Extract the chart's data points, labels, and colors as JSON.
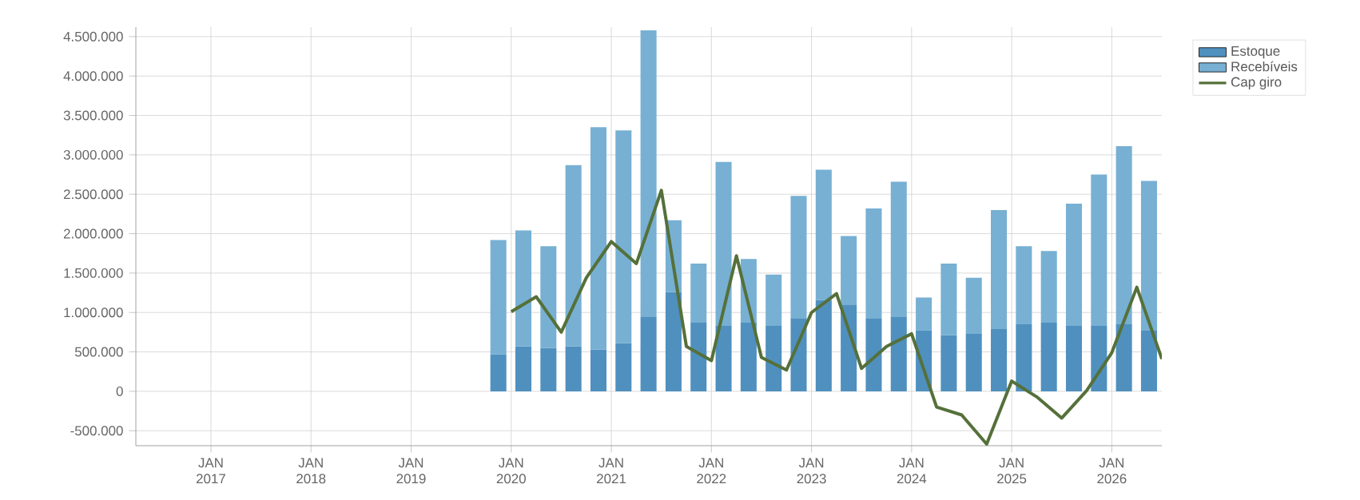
{
  "chart_data": {
    "type": "bar",
    "stacked": true,
    "grid": true,
    "legend": "right",
    "xlim": [
      "2016-04",
      "2026-07"
    ],
    "ylim": [
      -690000,
      4620000
    ],
    "xticks": [
      {
        "value": "2017-01",
        "label": "JAN 2017"
      },
      {
        "value": "2018-01",
        "label": "JAN 2018"
      },
      {
        "value": "2019-01",
        "label": "JAN 2019"
      },
      {
        "value": "2020-01",
        "label": "JAN 2020"
      },
      {
        "value": "2021-01",
        "label": "JAN 2021"
      },
      {
        "value": "2022-01",
        "label": "JAN 2022"
      },
      {
        "value": "2023-01",
        "label": "JAN 2023"
      },
      {
        "value": "2024-01",
        "label": "JAN 2024"
      },
      {
        "value": "2025-01",
        "label": "JAN 2025"
      },
      {
        "value": "2026-01",
        "label": "JAN 2026"
      }
    ],
    "yticks": [
      {
        "value": -500000,
        "label": "-500.000"
      },
      0,
      {
        "value": 500000,
        "label": "500.000"
      },
      {
        "value": 1000000,
        "label": "1.000.000"
      },
      {
        "value": 1500000,
        "label": "1.500.000"
      },
      {
        "value": 2000000,
        "label": "2.000.000"
      },
      {
        "value": 2500000,
        "label": "2.500.000"
      },
      {
        "value": 3000000,
        "label": "3.000.000"
      },
      {
        "value": 3500000,
        "label": "3.500.000"
      },
      {
        "value": 4000000,
        "label": "4.000.000"
      },
      {
        "value": 4500000,
        "label": "4.500.000"
      }
    ],
    "series": [
      {
        "name": "Estoque",
        "color": "#4f90bf",
        "x": [
          "2019-11-15",
          "2020-02-15",
          "2020-05-15",
          "2020-08-15",
          "2020-11-15",
          "2021-02-15",
          "2021-05-15",
          "2021-08-15",
          "2021-11-15",
          "2022-02-15",
          "2022-05-15",
          "2022-08-15",
          "2022-11-15",
          "2023-02-15",
          "2023-05-15",
          "2023-08-15",
          "2023-11-15",
          "2024-02-15",
          "2024-05-15",
          "2024-08-15",
          "2024-11-15",
          "2025-02-15",
          "2025-05-15",
          "2025-08-15",
          "2025-11-15",
          "2026-02-15",
          "2026-05-15"
        ],
        "values": [
          470000,
          570000,
          550000,
          570000,
          530000,
          610000,
          950000,
          1260000,
          870000,
          830000,
          870000,
          830000,
          930000,
          1160000,
          1100000,
          930000,
          950000,
          770000,
          710000,
          730000,
          790000,
          850000,
          870000,
          830000,
          830000,
          850000,
          770000
        ]
      },
      {
        "name": "Recebíveis",
        "color": "#77b0d3",
        "x": [
          "2019-11-15",
          "2020-02-15",
          "2020-05-15",
          "2020-08-15",
          "2020-11-15",
          "2021-02-15",
          "2021-05-15",
          "2021-08-15",
          "2021-11-15",
          "2022-02-15",
          "2022-05-15",
          "2022-08-15",
          "2022-11-15",
          "2023-02-15",
          "2023-05-15",
          "2023-08-15",
          "2023-11-15",
          "2024-02-15",
          "2024-05-15",
          "2024-08-15",
          "2024-11-15",
          "2025-02-15",
          "2025-05-15",
          "2025-08-15",
          "2025-11-15",
          "2026-02-15",
          "2026-05-15"
        ],
        "values": [
          1450000,
          1470000,
          1290000,
          2300000,
          2820000,
          2700000,
          3630000,
          910000,
          750000,
          2080000,
          810000,
          650000,
          1550000,
          1650000,
          870000,
          1390000,
          1710000,
          420000,
          910000,
          710000,
          1510000,
          990000,
          910000,
          1550000,
          1920000,
          2260000,
          1900000
        ]
      },
      {
        "name": "Cap giro",
        "type": "line",
        "color": "#55703a",
        "x": [
          "2020-01",
          "2020-04",
          "2020-07",
          "2020-10",
          "2021-01",
          "2021-04",
          "2021-07",
          "2021-10",
          "2022-01",
          "2022-04",
          "2022-07",
          "2022-10",
          "2023-01",
          "2023-04",
          "2023-07",
          "2023-10",
          "2024-01",
          "2024-04",
          "2024-07",
          "2024-10",
          "2025-01",
          "2025-04",
          "2025-07",
          "2025-10",
          "2026-01",
          "2026-04",
          "2026-07"
        ],
        "values": [
          1010000,
          1200000,
          750000,
          1440000,
          1900000,
          1620000,
          2550000,
          570000,
          390000,
          1720000,
          430000,
          270000,
          1000000,
          1240000,
          290000,
          570000,
          730000,
          -200000,
          -300000,
          -670000,
          130000,
          -70000,
          -340000,
          10000,
          490000,
          1320000,
          410000
        ]
      }
    ]
  }
}
